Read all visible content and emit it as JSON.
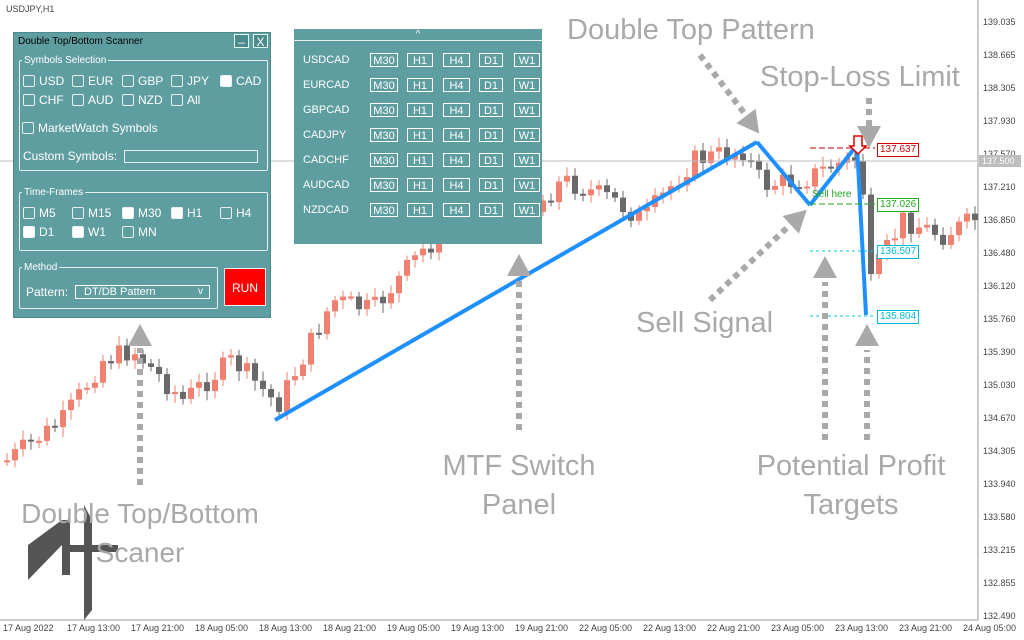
{
  "chart": {
    "symbol_label": "USDJPY,H1",
    "current_price": "137.500",
    "colors": {
      "bull": "#f08070",
      "bear": "#696969",
      "pattern_line": "#1e90ff",
      "stop_loss": "#cc0000",
      "entry": "#22aa22",
      "target": "#00c8d8",
      "annotation": "#a9a9a9"
    },
    "price_axis": [
      "139.035",
      "138.665",
      "138.305",
      "137.930",
      "137.570",
      "137.210",
      "136.850",
      "136.480",
      "136.120",
      "135.760",
      "135.390",
      "135.030",
      "134.670",
      "134.305",
      "133.940",
      "133.580",
      "133.215",
      "132.855",
      "132.490"
    ],
    "date_axis": [
      "17 Aug 2022",
      "17 Aug 13:00",
      "17 Aug 21:00",
      "18 Aug 05:00",
      "18 Aug 13:00",
      "18 Aug 21:00",
      "19 Aug 05:00",
      "19 Aug 13:00",
      "19 Aug 21:00",
      "22 Aug 05:00",
      "22 Aug 13:00",
      "22 Aug 21:00",
      "23 Aug 05:00",
      "23 Aug 13:00",
      "23 Aug 21:00",
      "24 Aug 05:00"
    ],
    "levels": {
      "stop_loss": "137.637",
      "entry": "137.026",
      "target1": "136.507",
      "target2": "135.804"
    },
    "sell_text": "Sell here"
  },
  "scanner": {
    "title": "Double Top/Bottom Scanner",
    "minimize": "–",
    "close": "X",
    "symbols_group": "Symbols Selection",
    "symbols": [
      {
        "label": "USD",
        "checked": false
      },
      {
        "label": "EUR",
        "checked": false
      },
      {
        "label": "GBP",
        "checked": false
      },
      {
        "label": "JPY",
        "checked": false
      },
      {
        "label": "CAD",
        "checked": true
      },
      {
        "label": "CHF",
        "checked": false
      },
      {
        "label": "AUD",
        "checked": false
      },
      {
        "label": "NZD",
        "checked": false
      },
      {
        "label": "All",
        "checked": false
      }
    ],
    "marketwatch": "MarketWatch Symbols",
    "custom_symbols": "Custom Symbols:",
    "timeframes_group": "Time-Frames",
    "timeframes": [
      {
        "label": "M5",
        "checked": false
      },
      {
        "label": "M15",
        "checked": false
      },
      {
        "label": "M30",
        "checked": true
      },
      {
        "label": "H1",
        "checked": true
      },
      {
        "label": "H4",
        "checked": false
      },
      {
        "label": "D1",
        "checked": true
      },
      {
        "label": "W1",
        "checked": true
      },
      {
        "label": "MN",
        "checked": false
      }
    ],
    "method_group": "Method",
    "pattern_label": "Pattern:",
    "pattern_value": "DT/DB Pattern",
    "pattern_arrow": "v",
    "run": "RUN"
  },
  "mtf": {
    "collapse": "^",
    "timeframes": [
      "M30",
      "H1",
      "H4",
      "D1",
      "W1"
    ],
    "symbols": [
      "USDCAD",
      "EURCAD",
      "GBPCAD",
      "CADJPY",
      "CADCHF",
      "AUDCAD",
      "NZDCAD"
    ]
  },
  "annotations": {
    "double_top": "Double Top Pattern",
    "stop_loss": "Stop-Loss Limit",
    "sell_signal": "Sell Signal",
    "mtf_line1": "MTF Switch",
    "mtf_line2": "Panel",
    "profit_line1": "Potential Profit",
    "profit_line2": "Targets",
    "scanner_line1": "Double Top/Bottom",
    "scanner_line2": "Scaner"
  }
}
